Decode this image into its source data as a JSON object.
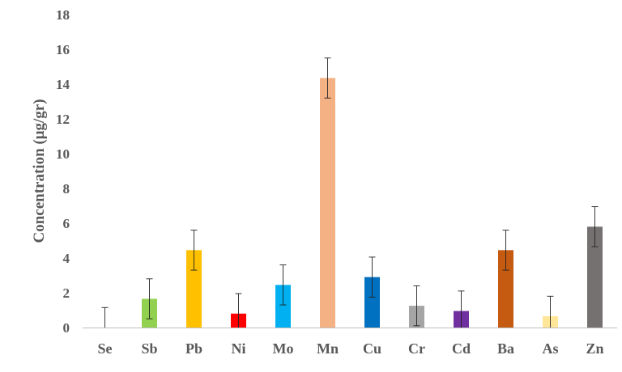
{
  "chart_data": {
    "type": "bar",
    "title": "",
    "xlabel": "",
    "ylabel": "Concentration (μg/gr)",
    "ylim": [
      0,
      18
    ],
    "yticks": [
      0,
      2,
      4,
      6,
      8,
      10,
      12,
      14,
      16,
      18
    ],
    "grid": false,
    "legend": "none",
    "categories": [
      "Se",
      "Sb",
      "Pb",
      "Ni",
      "Mo",
      "Mn",
      "Cu",
      "Cr",
      "Cd",
      "Ba",
      "As",
      "Zn"
    ],
    "values": [
      0,
      1.65,
      4.45,
      0.8,
      2.45,
      14.35,
      2.9,
      1.25,
      0.95,
      4.45,
      0.65,
      5.8
    ],
    "errors": [
      1.15,
      1.15,
      1.15,
      1.15,
      1.15,
      1.15,
      1.15,
      1.15,
      1.15,
      1.15,
      1.15,
      1.15
    ],
    "colors": [
      "#4472c4",
      "#92d050",
      "#ffc000",
      "#ff0000",
      "#00b0f0",
      "#f4b183",
      "#0070c0",
      "#a5a5a5",
      "#7030a0",
      "#c55a11",
      "#ffe699",
      "#767171"
    ]
  }
}
